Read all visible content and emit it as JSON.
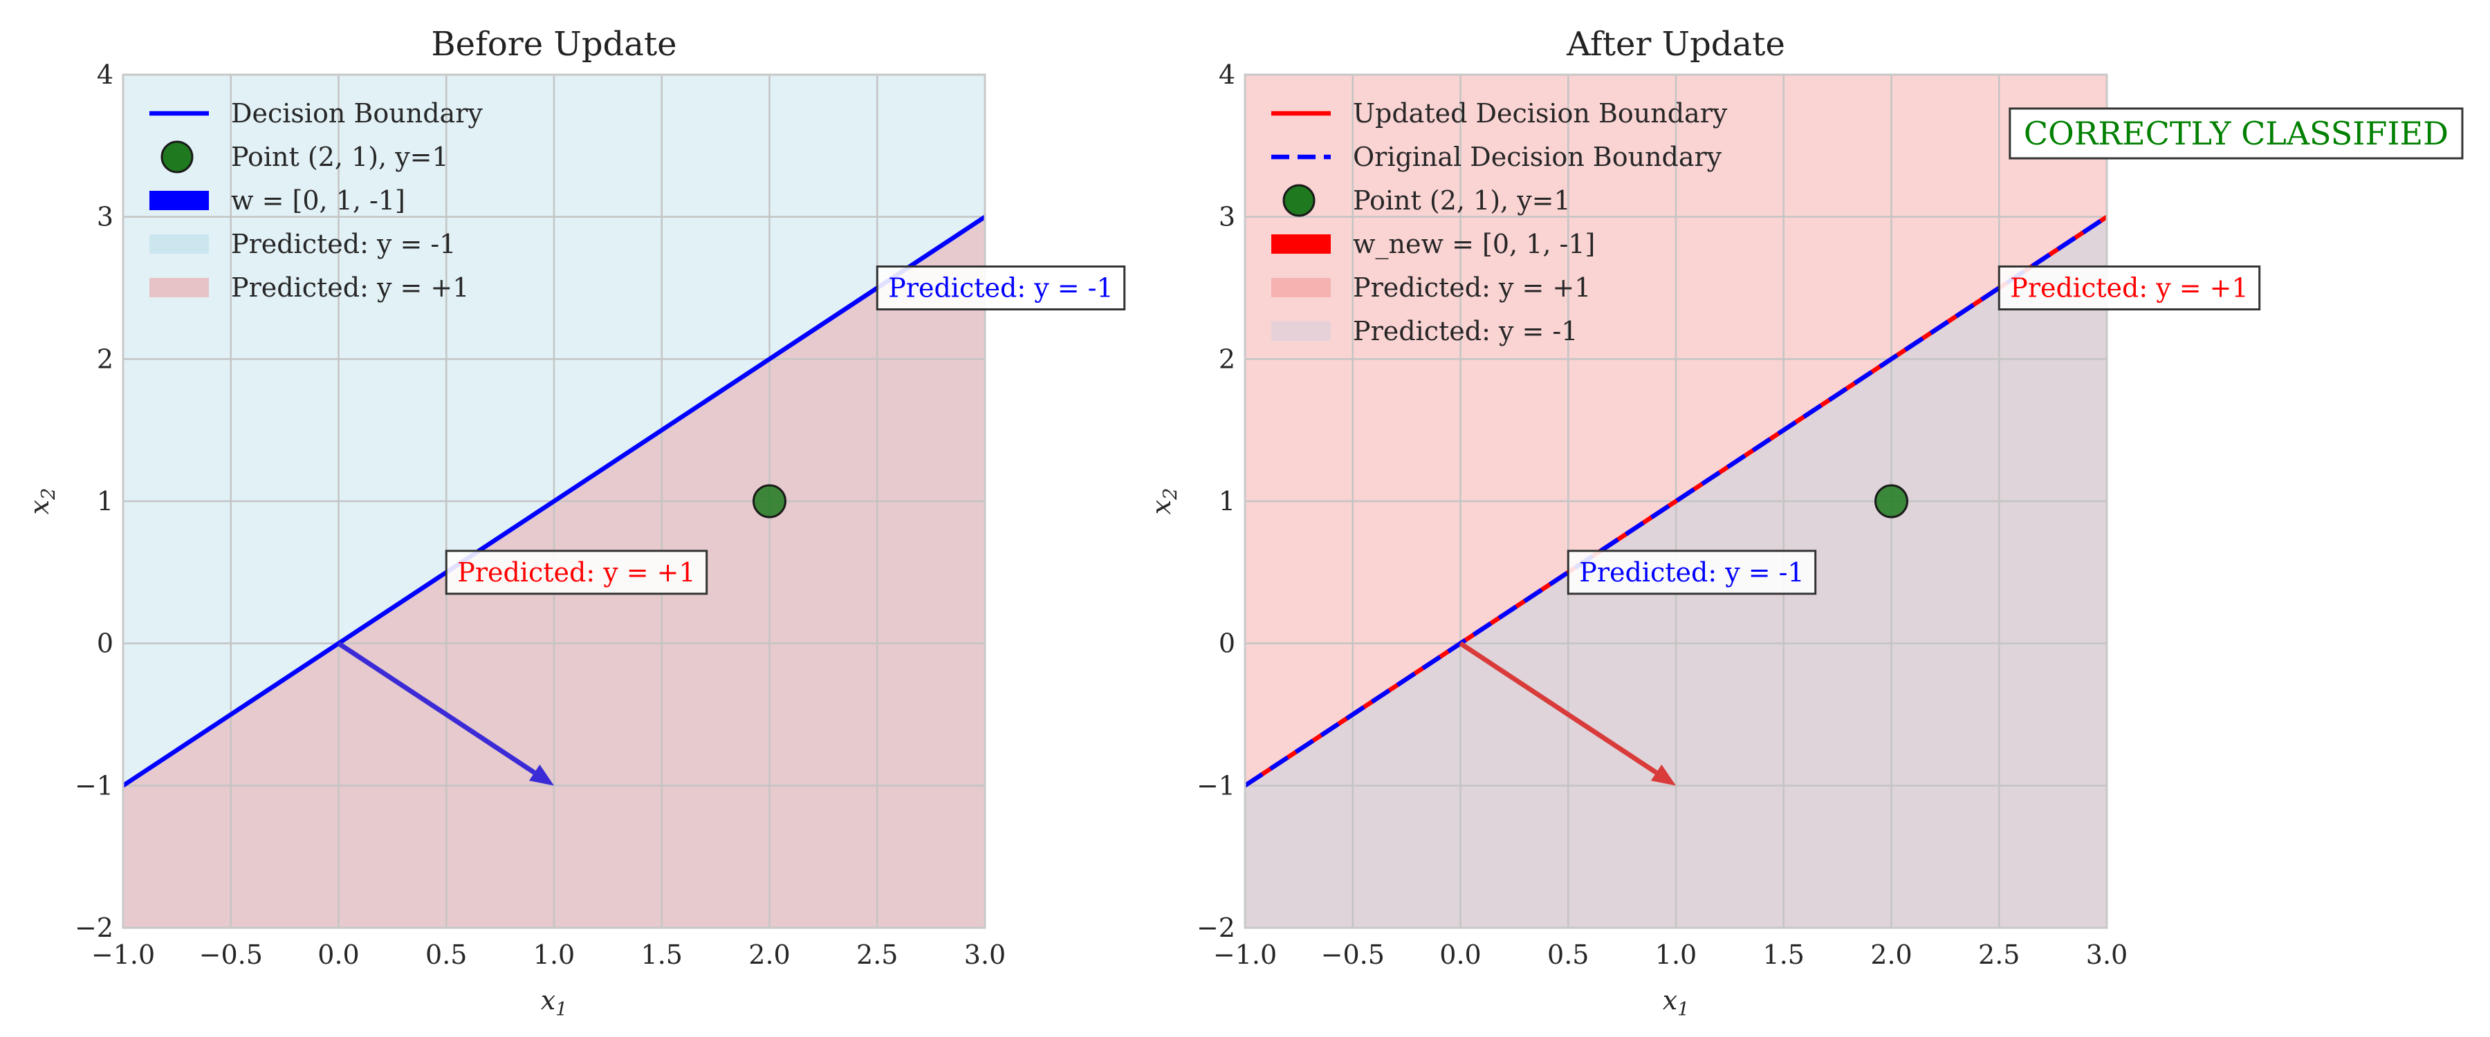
{
  "chart_data": [
    {
      "type": "line",
      "title": "Before Update",
      "xlabel": "x",
      "xlabel_sub": "1",
      "ylabel": "x",
      "ylabel_sub": "2",
      "xlim": [
        -1.0,
        3.0
      ],
      "ylim": [
        -2,
        4
      ],
      "xticks": [
        -1.0,
        -0.5,
        0.0,
        0.5,
        1.0,
        1.5,
        2.0,
        2.5,
        3.0
      ],
      "yticks": [
        -2,
        -1,
        0,
        1,
        2,
        3,
        4
      ],
      "grid": true,
      "legend_position": "top-left",
      "boundary": {
        "name": "Decision Boundary",
        "x": [
          -1.0,
          3.0
        ],
        "y": [
          -1.0,
          3.0
        ],
        "color": "#0000ff",
        "style": "solid"
      },
      "point": {
        "name": "Point (2, 1), y=1",
        "x": 2,
        "y": 1,
        "color": "#1f7a1f"
      },
      "weight_vector": {
        "name": "w = [0, 1, -1]",
        "from": [
          0,
          0
        ],
        "to": [
          1,
          -1
        ],
        "color": "#3a2bd6"
      },
      "regions": [
        {
          "name": "Predicted: y = -1",
          "side": "above",
          "color": "#add8e6"
        },
        {
          "name": "Predicted: y = +1",
          "side": "below",
          "color": "#f08080"
        }
      ],
      "annotations": [
        {
          "text": "Predicted: y = -1",
          "x": 2.5,
          "y": 2.5,
          "color": "#0000ff"
        },
        {
          "text": "Predicted: y = +1",
          "x": 0.5,
          "y": 0.5,
          "color": "#ff0000"
        }
      ],
      "legend": [
        {
          "kind": "line",
          "label": "Decision Boundary",
          "color": "#0000ff"
        },
        {
          "kind": "marker",
          "label": "Point (2, 1), y=1",
          "color": "#1f7a1f"
        },
        {
          "kind": "patch",
          "label": "w = [0, 1, -1]",
          "color": "#0000ff"
        },
        {
          "kind": "region",
          "label": "Predicted: y = -1",
          "color": "#add8e6"
        },
        {
          "kind": "region",
          "label": "Predicted: y = +1",
          "color": "#f08080"
        }
      ]
    },
    {
      "type": "line",
      "title": "After Update",
      "xlabel": "x",
      "xlabel_sub": "1",
      "ylabel": "x",
      "ylabel_sub": "2",
      "xlim": [
        -1.0,
        3.0
      ],
      "ylim": [
        -2,
        4
      ],
      "xticks": [
        -1.0,
        -0.5,
        0.0,
        0.5,
        1.0,
        1.5,
        2.0,
        2.5,
        3.0
      ],
      "yticks": [
        -2,
        -1,
        0,
        1,
        2,
        3,
        4
      ],
      "grid": true,
      "legend_position": "top-left",
      "boundary": {
        "name": "Updated Decision Boundary",
        "x": [
          -1.0,
          3.0
        ],
        "y": [
          -1.0,
          3.0
        ],
        "color": "#ff0000",
        "style": "solid"
      },
      "original_boundary": {
        "name": "Original Decision Boundary",
        "x": [
          -1.0,
          3.0
        ],
        "y": [
          -1.0,
          3.0
        ],
        "color": "#0000ff",
        "style": "dashed"
      },
      "point": {
        "name": "Point (2, 1), y=1",
        "x": 2,
        "y": 1,
        "color": "#1f7a1f"
      },
      "weight_vector": {
        "name": "w_new = [0, 1, -1]",
        "from": [
          0,
          0
        ],
        "to": [
          1,
          -1
        ],
        "color": "#d93a3a"
      },
      "regions": [
        {
          "name": "Predicted: y = +1",
          "side": "above",
          "color": "#f08080"
        },
        {
          "name": "Predicted: y = -1",
          "side": "below",
          "color": "#add8e6"
        }
      ],
      "annotations": [
        {
          "text": "Predicted: y = +1",
          "x": 2.5,
          "y": 2.5,
          "color": "#ff0000"
        },
        {
          "text": "Predicted: y = -1",
          "x": 0.5,
          "y": 0.5,
          "color": "#0000ff"
        }
      ],
      "status": {
        "text": "CORRECTLY CLASSIFIED",
        "color": "#008000"
      },
      "legend": [
        {
          "kind": "line",
          "label": "Updated Decision Boundary",
          "color": "#ff0000"
        },
        {
          "kind": "dashed",
          "label": "Original Decision Boundary",
          "color": "#0000ff"
        },
        {
          "kind": "marker",
          "label": "Point (2, 1), y=1",
          "color": "#1f7a1f"
        },
        {
          "kind": "patch",
          "label": "w_new = [0, 1, -1]",
          "color": "#ff0000"
        },
        {
          "kind": "region",
          "label": "Predicted: y = +1",
          "color": "#f08080"
        },
        {
          "kind": "region",
          "label": "Predicted: y = -1",
          "color": "#c8d0e0"
        }
      ]
    }
  ]
}
